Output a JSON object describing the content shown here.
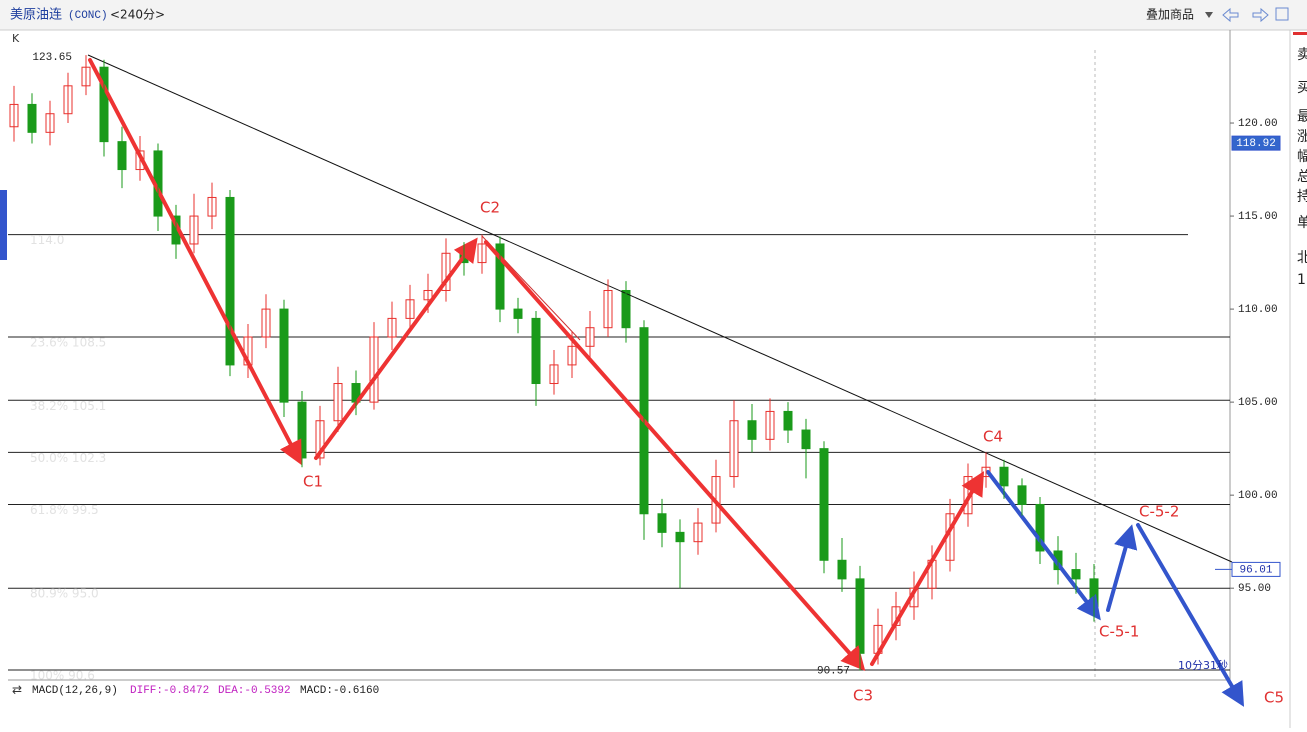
{
  "header": {
    "symbol": "美原油连",
    "code": "(CONC)",
    "period": "<240分>",
    "overlay": "叠加商品"
  },
  "side_panel": [
    "卖",
    "买",
    "最",
    "涨",
    "幅",
    "总",
    "持",
    "单",
    "北",
    "1"
  ],
  "chart_data": {
    "type": "candlestick",
    "label": "K",
    "ylim": [
      90.2,
      125.0
    ],
    "yticks": [
      {
        "value": 95,
        "label": "95.00"
      },
      {
        "value": 100,
        "label": "100.00"
      },
      {
        "value": 105,
        "label": "105.00"
      },
      {
        "value": 110,
        "label": "110.00"
      },
      {
        "value": 115,
        "label": "115.00"
      },
      {
        "value": 120,
        "label": "120.00"
      }
    ],
    "up_color": "#e8302c",
    "down_color": "#1a9a1a",
    "ohlc": [
      [
        119.8,
        122.0,
        119.0,
        121.0
      ],
      [
        121.0,
        121.6,
        118.9,
        119.5
      ],
      [
        119.5,
        121.2,
        118.8,
        120.5
      ],
      [
        120.5,
        122.7,
        120.0,
        122.0
      ],
      [
        122.0,
        123.65,
        121.5,
        123.0
      ],
      [
        123.0,
        123.4,
        118.2,
        119.0
      ],
      [
        119.0,
        119.8,
        116.5,
        117.5
      ],
      [
        117.5,
        119.3,
        116.9,
        118.5
      ],
      [
        118.5,
        118.9,
        114.2,
        115.0
      ],
      [
        115.0,
        115.6,
        112.7,
        113.5
      ],
      [
        113.5,
        116.2,
        113.0,
        115.0
      ],
      [
        115.0,
        116.8,
        114.3,
        116.0
      ],
      [
        116.0,
        116.4,
        106.4,
        107.0
      ],
      [
        107.0,
        109.2,
        106.3,
        108.5
      ],
      [
        108.5,
        110.8,
        107.9,
        110.0
      ],
      [
        110.0,
        110.5,
        104.2,
        105.0
      ],
      [
        105.0,
        105.6,
        101.5,
        102.0
      ],
      [
        102.0,
        104.8,
        101.6,
        104.0
      ],
      [
        104.0,
        106.9,
        103.4,
        106.0
      ],
      [
        106.0,
        106.7,
        104.3,
        105.0
      ],
      [
        105.0,
        109.3,
        104.6,
        108.5
      ],
      [
        108.5,
        110.4,
        107.8,
        109.5
      ],
      [
        109.5,
        111.3,
        108.9,
        110.5
      ],
      [
        110.5,
        111.9,
        109.8,
        111.0
      ],
      [
        111.0,
        113.8,
        110.4,
        113.0
      ],
      [
        113.0,
        113.6,
        111.8,
        112.5
      ],
      [
        112.5,
        114.0,
        111.9,
        113.5
      ],
      [
        113.5,
        113.9,
        109.3,
        110.0
      ],
      [
        110.0,
        110.6,
        108.7,
        109.5
      ],
      [
        109.5,
        109.9,
        104.8,
        106.0
      ],
      [
        106.0,
        107.8,
        105.4,
        107.0
      ],
      [
        107.0,
        108.8,
        106.3,
        108.0
      ],
      [
        108.0,
        109.9,
        107.4,
        109.0
      ],
      [
        109.0,
        111.6,
        108.5,
        111.0
      ],
      [
        111.0,
        111.5,
        108.2,
        109.0
      ],
      [
        109.0,
        109.4,
        97.6,
        99.0
      ],
      [
        99.0,
        99.8,
        97.2,
        98.0
      ],
      [
        98.0,
        98.7,
        95.0,
        97.5
      ],
      [
        97.5,
        99.3,
        96.8,
        98.5
      ],
      [
        98.5,
        101.9,
        98.0,
        101.0
      ],
      [
        101.0,
        105.1,
        100.4,
        104.0
      ],
      [
        104.0,
        104.9,
        102.3,
        103.0
      ],
      [
        103.0,
        105.2,
        102.4,
        104.5
      ],
      [
        104.5,
        105.0,
        102.8,
        103.5
      ],
      [
        103.5,
        104.1,
        100.9,
        102.5
      ],
      [
        102.5,
        102.9,
        95.8,
        96.5
      ],
      [
        96.5,
        97.7,
        94.8,
        95.5
      ],
      [
        95.5,
        96.2,
        90.57,
        91.5
      ],
      [
        91.5,
        93.9,
        90.9,
        93.0
      ],
      [
        93.0,
        94.8,
        92.2,
        94.0
      ],
      [
        94.0,
        95.9,
        93.3,
        95.0
      ],
      [
        95.0,
        97.3,
        94.4,
        96.5
      ],
      [
        96.5,
        99.8,
        95.9,
        99.0
      ],
      [
        99.0,
        101.7,
        98.3,
        101.0
      ],
      [
        101.0,
        102.3,
        100.4,
        101.5
      ],
      [
        101.5,
        101.9,
        99.8,
        100.5
      ],
      [
        100.5,
        100.9,
        98.9,
        99.5
      ],
      [
        99.5,
        99.9,
        96.3,
        97.0
      ],
      [
        97.0,
        97.8,
        95.2,
        96.0
      ],
      [
        96.0,
        96.9,
        94.7,
        95.5
      ],
      [
        95.5,
        96.3,
        93.2,
        94.0
      ]
    ],
    "levels": [
      {
        "value": 114.0,
        "label": "114.0"
      },
      {
        "value": 108.5,
        "label": "23.6% 108.5"
      },
      {
        "value": 105.1,
        "label": "38.2% 105.1"
      },
      {
        "value": 102.3,
        "label": "50.0% 102.3"
      },
      {
        "value": 99.5,
        "label": "61.8% 99.5"
      },
      {
        "value": 95.0,
        "label": "80.9% 95.0"
      },
      {
        "value": 90.6,
        "label": "100% 90.6"
      }
    ],
    "high_mark": 123.65,
    "low_mark": 90.57,
    "price_tag": 118.92,
    "trend_tag": 96.01,
    "waves": [
      "C1",
      "C2",
      "C3",
      "C4",
      "C5",
      "C-5-1",
      "C-5-2"
    ],
    "timer": "10分31秒"
  },
  "macd": {
    "title": "MACD(12,26,9)",
    "diff": "DIFF:-0.8472",
    "dea": "DEA:-0.5392",
    "macd": "MACD:-0.6160"
  }
}
